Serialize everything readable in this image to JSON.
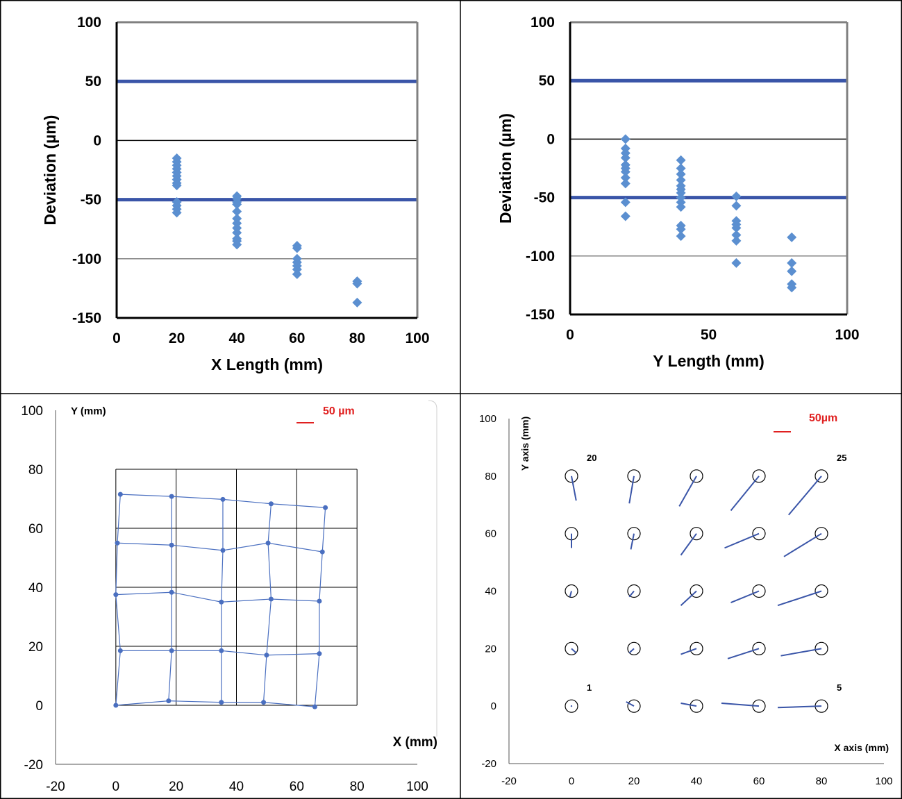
{
  "chart_data": [
    {
      "id": "x_deviation",
      "type": "scatter",
      "title": "",
      "xlabel": "X Length (mm)",
      "ylabel": "Deviation (µm)",
      "xlim": [
        0,
        100
      ],
      "ylim": [
        -150,
        100
      ],
      "xticks": [
        0,
        20,
        40,
        60,
        80,
        100
      ],
      "yticks": [
        -150,
        -100,
        -50,
        0,
        50,
        100
      ],
      "reference_lines": [
        50,
        0,
        -50,
        -100
      ],
      "grid": false,
      "colors": {
        "points": "#5b8fd0",
        "limit_lines": "#3a55a8",
        "zero_line": "#000000",
        "grid_line": "#808080"
      },
      "series": [
        {
          "points": [
            [
              20,
              -15
            ],
            [
              20,
              -18
            ],
            [
              20,
              -21
            ],
            [
              20,
              -24
            ],
            [
              20,
              -27
            ],
            [
              20,
              -30
            ],
            [
              20,
              -33
            ],
            [
              20,
              -36
            ],
            [
              20,
              -38
            ],
            [
              20,
              -52
            ],
            [
              20,
              -55
            ],
            [
              20,
              -58
            ],
            [
              20,
              -61
            ],
            [
              40,
              -47
            ],
            [
              40,
              -49
            ],
            [
              40,
              -52
            ],
            [
              40,
              -54
            ],
            [
              40,
              -60
            ],
            [
              40,
              -66
            ],
            [
              40,
              -70
            ],
            [
              40,
              -74
            ],
            [
              40,
              -78
            ],
            [
              40,
              -83
            ],
            [
              40,
              -85
            ],
            [
              40,
              -88
            ],
            [
              60,
              -89
            ],
            [
              60,
              -91
            ],
            [
              60,
              -100
            ],
            [
              60,
              -103
            ],
            [
              60,
              -106
            ],
            [
              60,
              -109
            ],
            [
              60,
              -113
            ],
            [
              80,
              -119
            ],
            [
              80,
              -121
            ],
            [
              80,
              -137
            ]
          ]
        }
      ]
    },
    {
      "id": "y_deviation",
      "type": "scatter",
      "title": "",
      "xlabel": "Y Length (mm)",
      "ylabel": "Deviation (µm)",
      "xlim": [
        0,
        100
      ],
      "ylim": [
        -150,
        100
      ],
      "xticks": [
        0,
        50,
        100
      ],
      "yticks": [
        -150,
        -100,
        -50,
        0,
        50,
        100
      ],
      "reference_lines": [
        50,
        0,
        -50,
        -100
      ],
      "grid": false,
      "colors": {
        "points": "#5b8fd0",
        "limit_lines": "#3a55a8",
        "zero_line": "#000000",
        "grid_line": "#808080"
      },
      "series": [
        {
          "points": [
            [
              20,
              0
            ],
            [
              20,
              -8
            ],
            [
              20,
              -12
            ],
            [
              20,
              -16
            ],
            [
              20,
              -22
            ],
            [
              20,
              -25
            ],
            [
              20,
              -28
            ],
            [
              20,
              -33
            ],
            [
              20,
              -38
            ],
            [
              20,
              -54
            ],
            [
              20,
              -66
            ],
            [
              40,
              -18
            ],
            [
              40,
              -25
            ],
            [
              40,
              -30
            ],
            [
              40,
              -35
            ],
            [
              40,
              -40
            ],
            [
              40,
              -43
            ],
            [
              40,
              -46
            ],
            [
              40,
              -50
            ],
            [
              40,
              -54
            ],
            [
              40,
              -58
            ],
            [
              40,
              -74
            ],
            [
              40,
              -77
            ],
            [
              40,
              -83
            ],
            [
              60,
              -49
            ],
            [
              60,
              -57
            ],
            [
              60,
              -70
            ],
            [
              60,
              -73
            ],
            [
              60,
              -76
            ],
            [
              60,
              -82
            ],
            [
              60,
              -87
            ],
            [
              60,
              -106
            ],
            [
              80,
              -84
            ],
            [
              80,
              -106
            ],
            [
              80,
              -113
            ],
            [
              80,
              -124
            ],
            [
              80,
              -127
            ]
          ]
        }
      ]
    },
    {
      "id": "distorted_grid",
      "type": "line",
      "title": "",
      "xlabel": "X (mm)",
      "ylabel": "Y (mm)",
      "xlim": [
        -20,
        100
      ],
      "ylim": [
        -20,
        100
      ],
      "xticks": [
        -20,
        0,
        20,
        40,
        60,
        80,
        100
      ],
      "yticks": [
        -20,
        0,
        20,
        40,
        60,
        80,
        100
      ],
      "scale_label": "50 µm",
      "reference_grid": {
        "x": [
          0,
          20,
          40,
          60,
          80
        ],
        "y": [
          0,
          20,
          40,
          60,
          80
        ]
      },
      "colors": {
        "mesh": "#4a6fc0",
        "reference_grid": "#000000",
        "scale": "#e02020"
      },
      "rows": [
        [
          [
            0,
            0
          ],
          [
            17.5,
            1.5
          ],
          [
            35,
            1
          ],
          [
            49,
            1
          ],
          [
            66,
            -0.5
          ]
        ],
        [
          [
            1.5,
            18.5
          ],
          [
            18.5,
            18.5
          ],
          [
            35,
            18.5
          ],
          [
            50,
            17
          ],
          [
            67.5,
            17.5
          ]
        ],
        [
          [
            0,
            37.5
          ],
          [
            18.5,
            38.3
          ],
          [
            35,
            35
          ],
          [
            51.5,
            36
          ],
          [
            67.5,
            35.3
          ]
        ],
        [
          [
            0.5,
            55
          ],
          [
            18.5,
            54.3
          ],
          [
            35.5,
            52.5
          ],
          [
            50.5,
            55
          ],
          [
            68.5,
            52
          ]
        ],
        [
          [
            1.5,
            71.5
          ],
          [
            18.5,
            70.8
          ],
          [
            35.5,
            69.8
          ],
          [
            51.5,
            68.3
          ],
          [
            69.5,
            67
          ]
        ]
      ]
    },
    {
      "id": "error_vectors",
      "type": "scatter",
      "title": "",
      "xlabel": "X axis (mm)",
      "ylabel": "Y axis (mm)",
      "xlim": [
        -20,
        100
      ],
      "ylim": [
        -20,
        100
      ],
      "xticks": [
        -20,
        0,
        20,
        40,
        60,
        80,
        100
      ],
      "yticks": [
        -20,
        0,
        20,
        40,
        60,
        80,
        100
      ],
      "scale_label": "50µm",
      "colors": {
        "vectors": "#3a55a8",
        "circles": "#000000",
        "scale": "#e02020"
      },
      "point_labels": [
        {
          "text": "1",
          "x": 0,
          "y": 0
        },
        {
          "text": "5",
          "x": 80,
          "y": 0
        },
        {
          "text": "20",
          "x": 0,
          "y": 80
        },
        {
          "text": "25",
          "x": 80,
          "y": 80
        }
      ],
      "vectors": [
        {
          "x": 0,
          "y": 0,
          "dx": 0,
          "dy": 0
        },
        {
          "x": 20,
          "y": 0,
          "dx": -2.5,
          "dy": 1.5
        },
        {
          "x": 40,
          "y": 0,
          "dx": -5,
          "dy": 1
        },
        {
          "x": 60,
          "y": 0,
          "dx": -12,
          "dy": 1
        },
        {
          "x": 80,
          "y": 0,
          "dx": -14,
          "dy": -0.5
        },
        {
          "x": 0,
          "y": 20,
          "dx": 1.5,
          "dy": -1.5
        },
        {
          "x": 20,
          "y": 20,
          "dx": -1.5,
          "dy": -1.5
        },
        {
          "x": 40,
          "y": 20,
          "dx": -5,
          "dy": -2
        },
        {
          "x": 60,
          "y": 20,
          "dx": -10,
          "dy": -3.5
        },
        {
          "x": 80,
          "y": 20,
          "dx": -13,
          "dy": -2.5
        },
        {
          "x": 0,
          "y": 40,
          "dx": -0.5,
          "dy": -2
        },
        {
          "x": 20,
          "y": 40,
          "dx": -1.5,
          "dy": -2
        },
        {
          "x": 40,
          "y": 40,
          "dx": -5,
          "dy": -5
        },
        {
          "x": 60,
          "y": 40,
          "dx": -9,
          "dy": -4
        },
        {
          "x": 80,
          "y": 40,
          "dx": -14,
          "dy": -5
        },
        {
          "x": 0,
          "y": 60,
          "dx": 0,
          "dy": -5
        },
        {
          "x": 20,
          "y": 60,
          "dx": -1,
          "dy": -5.5
        },
        {
          "x": 40,
          "y": 60,
          "dx": -5,
          "dy": -7.5
        },
        {
          "x": 60,
          "y": 60,
          "dx": -11,
          "dy": -5
        },
        {
          "x": 80,
          "y": 60,
          "dx": -12,
          "dy": -8
        },
        {
          "x": 0,
          "y": 80,
          "dx": 1.5,
          "dy": -8.5
        },
        {
          "x": 20,
          "y": 80,
          "dx": -1.5,
          "dy": -9.5
        },
        {
          "x": 40,
          "y": 80,
          "dx": -5.5,
          "dy": -10.5
        },
        {
          "x": 60,
          "y": 80,
          "dx": -9,
          "dy": -12
        },
        {
          "x": 80,
          "y": 80,
          "dx": -10.5,
          "dy": -13.5
        }
      ]
    }
  ]
}
